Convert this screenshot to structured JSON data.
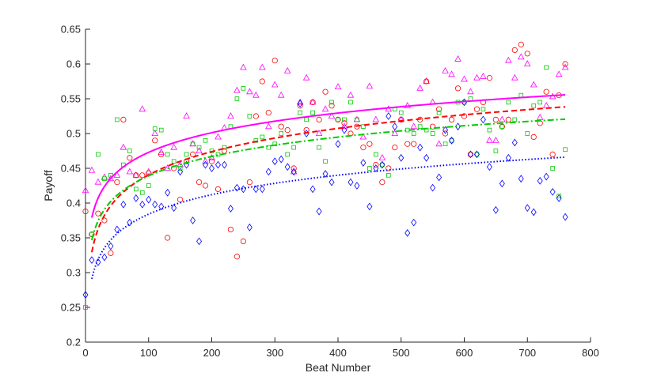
{
  "chart_data": {
    "type": "scatter",
    "xlabel": "Beat Number",
    "ylabel": "Payoff",
    "xlim": [
      0,
      800
    ],
    "ylim": [
      0.2,
      0.65
    ],
    "xticks": [
      0,
      100,
      200,
      300,
      400,
      500,
      600,
      700,
      800
    ],
    "yticks": [
      0.2,
      0.25,
      0.3,
      0.35,
      0.4,
      0.45,
      0.5,
      0.55,
      0.6,
      0.65
    ],
    "grid": false,
    "box": false,
    "fits": [
      {
        "color": "#ff00ff",
        "style": "solid",
        "x_range": [
          10,
          760
        ],
        "a": 0.285,
        "b": 0.0408
      },
      {
        "color": "#ff0000",
        "style": "dashed",
        "x_range": [
          10,
          760
        ],
        "a": 0.218,
        "b": 0.0483
      },
      {
        "color": "#00cc00",
        "style": "dashdot",
        "x_range": [
          10,
          760
        ],
        "a": 0.254,
        "b": 0.0402
      },
      {
        "color": "#0000ff",
        "style": "dotted",
        "x_range": [
          10,
          760
        ],
        "a": 0.198,
        "b": 0.0404
      }
    ],
    "series": [
      {
        "marker": "triangle",
        "color": "#ff00ff",
        "points": [
          [
            0,
            0.418
          ],
          [
            10,
            0.447
          ],
          [
            20,
            0.43
          ],
          [
            30,
            0.437
          ],
          [
            40,
            0.435
          ],
          [
            50,
            0.44
          ],
          [
            60,
            0.48
          ],
          [
            70,
            0.445
          ],
          [
            80,
            0.44
          ],
          [
            90,
            0.535
          ],
          [
            100,
            0.445
          ],
          [
            110,
            0.5
          ],
          [
            120,
            0.473
          ],
          [
            130,
            0.45
          ],
          [
            140,
            0.48
          ],
          [
            150,
            0.455
          ],
          [
            160,
            0.525
          ],
          [
            170,
            0.485
          ],
          [
            180,
            0.475
          ],
          [
            190,
            0.46
          ],
          [
            200,
            0.465
          ],
          [
            210,
            0.495
          ],
          [
            220,
            0.508
          ],
          [
            230,
            0.525
          ],
          [
            240,
            0.562
          ],
          [
            250,
            0.595
          ],
          [
            260,
            0.56
          ],
          [
            270,
            0.555
          ],
          [
            280,
            0.595
          ],
          [
            290,
            0.51
          ],
          [
            300,
            0.57
          ],
          [
            310,
            0.555
          ],
          [
            320,
            0.59
          ],
          [
            330,
            0.445
          ],
          [
            340,
            0.545
          ],
          [
            350,
            0.58
          ],
          [
            360,
            0.545
          ],
          [
            370,
            0.5
          ],
          [
            380,
            0.535
          ],
          [
            390,
            0.525
          ],
          [
            400,
            0.567
          ],
          [
            410,
            0.51
          ],
          [
            420,
            0.555
          ],
          [
            430,
            0.52
          ],
          [
            440,
            0.495
          ],
          [
            450,
            0.568
          ],
          [
            460,
            0.52
          ],
          [
            470,
            0.465
          ],
          [
            480,
            0.535
          ],
          [
            490,
            0.5
          ],
          [
            500,
            0.52
          ],
          [
            510,
            0.54
          ],
          [
            520,
            0.51
          ],
          [
            530,
            0.565
          ],
          [
            540,
            0.575
          ],
          [
            550,
            0.545
          ],
          [
            560,
            0.485
          ],
          [
            570,
            0.59
          ],
          [
            580,
            0.585
          ],
          [
            590,
            0.607
          ],
          [
            600,
            0.578
          ],
          [
            610,
            0.56
          ],
          [
            620,
            0.58
          ],
          [
            630,
            0.582
          ],
          [
            640,
            0.49
          ],
          [
            650,
            0.49
          ],
          [
            660,
            0.52
          ],
          [
            670,
            0.605
          ],
          [
            680,
            0.58
          ],
          [
            690,
            0.61
          ],
          [
            700,
            0.6
          ],
          [
            710,
            0.57
          ],
          [
            720,
            0.523
          ],
          [
            730,
            0.54
          ],
          [
            740,
            0.553
          ],
          [
            750,
            0.585
          ],
          [
            760,
            0.595
          ]
        ]
      },
      {
        "marker": "circle",
        "color": "#ff0000",
        "points": [
          [
            0,
            0.388
          ],
          [
            10,
            0.355
          ],
          [
            20,
            0.385
          ],
          [
            30,
            0.375
          ],
          [
            40,
            0.328
          ],
          [
            50,
            0.43
          ],
          [
            60,
            0.52
          ],
          [
            70,
            0.465
          ],
          [
            80,
            0.44
          ],
          [
            90,
            0.44
          ],
          [
            100,
            0.443
          ],
          [
            110,
            0.49
          ],
          [
            120,
            0.47
          ],
          [
            130,
            0.35
          ],
          [
            140,
            0.45
          ],
          [
            150,
            0.405
          ],
          [
            160,
            0.46
          ],
          [
            170,
            0.47
          ],
          [
            180,
            0.43
          ],
          [
            190,
            0.425
          ],
          [
            200,
            0.46
          ],
          [
            210,
            0.42
          ],
          [
            220,
            0.475
          ],
          [
            230,
            0.362
          ],
          [
            240,
            0.323
          ],
          [
            250,
            0.345
          ],
          [
            260,
            0.43
          ],
          [
            270,
            0.525
          ],
          [
            280,
            0.575
          ],
          [
            290,
            0.53
          ],
          [
            300,
            0.605
          ],
          [
            310,
            0.51
          ],
          [
            320,
            0.505
          ],
          [
            330,
            0.45
          ],
          [
            340,
            0.54
          ],
          [
            350,
            0.505
          ],
          [
            360,
            0.545
          ],
          [
            370,
            0.52
          ],
          [
            380,
            0.56
          ],
          [
            390,
            0.54
          ],
          [
            400,
            0.52
          ],
          [
            410,
            0.515
          ],
          [
            420,
            0.5
          ],
          [
            430,
            0.51
          ],
          [
            440,
            0.48
          ],
          [
            450,
            0.485
          ],
          [
            460,
            0.455
          ],
          [
            470,
            0.43
          ],
          [
            480,
            0.45
          ],
          [
            490,
            0.48
          ],
          [
            500,
            0.52
          ],
          [
            510,
            0.485
          ],
          [
            520,
            0.485
          ],
          [
            530,
            0.52
          ],
          [
            540,
            0.575
          ],
          [
            550,
            0.51
          ],
          [
            560,
            0.535
          ],
          [
            570,
            0.5
          ],
          [
            580,
            0.52
          ],
          [
            590,
            0.565
          ],
          [
            600,
            0.525
          ],
          [
            610,
            0.47
          ],
          [
            620,
            0.535
          ],
          [
            630,
            0.545
          ],
          [
            640,
            0.58
          ],
          [
            650,
            0.52
          ],
          [
            660,
            0.51
          ],
          [
            670,
            0.52
          ],
          [
            680,
            0.62
          ],
          [
            690,
            0.628
          ],
          [
            700,
            0.615
          ],
          [
            710,
            0.495
          ],
          [
            720,
            0.515
          ],
          [
            730,
            0.56
          ],
          [
            740,
            0.47
          ],
          [
            750,
            0.555
          ],
          [
            760,
            0.6
          ]
        ]
      },
      {
        "marker": "square",
        "color": "#00cc00",
        "points": [
          [
            0,
            0.25
          ],
          [
            10,
            0.355
          ],
          [
            20,
            0.47
          ],
          [
            30,
            0.435
          ],
          [
            40,
            0.44
          ],
          [
            50,
            0.52
          ],
          [
            60,
            0.455
          ],
          [
            70,
            0.475
          ],
          [
            80,
            0.42
          ],
          [
            90,
            0.415
          ],
          [
            100,
            0.425
          ],
          [
            110,
            0.507
          ],
          [
            120,
            0.505
          ],
          [
            130,
            0.47
          ],
          [
            140,
            0.46
          ],
          [
            150,
            0.45
          ],
          [
            160,
            0.47
          ],
          [
            170,
            0.485
          ],
          [
            180,
            0.48
          ],
          [
            190,
            0.49
          ],
          [
            200,
            0.475
          ],
          [
            210,
            0.47
          ],
          [
            220,
            0.48
          ],
          [
            230,
            0.51
          ],
          [
            240,
            0.55
          ],
          [
            250,
            0.565
          ],
          [
            260,
            0.525
          ],
          [
            270,
            0.49
          ],
          [
            280,
            0.495
          ],
          [
            290,
            0.48
          ],
          [
            300,
            0.485
          ],
          [
            310,
            0.5
          ],
          [
            320,
            0.47
          ],
          [
            330,
            0.48
          ],
          [
            340,
            0.53
          ],
          [
            350,
            0.52
          ],
          [
            360,
            0.53
          ],
          [
            370,
            0.48
          ],
          [
            380,
            0.46
          ],
          [
            390,
            0.545
          ],
          [
            400,
            0.52
          ],
          [
            410,
            0.52
          ],
          [
            420,
            0.545
          ],
          [
            430,
            0.52
          ],
          [
            440,
            0.51
          ],
          [
            450,
            0.45
          ],
          [
            460,
            0.47
          ],
          [
            470,
            0.455
          ],
          [
            480,
            0.44
          ],
          [
            490,
            0.535
          ],
          [
            500,
            0.53
          ],
          [
            510,
            0.505
          ],
          [
            520,
            0.5
          ],
          [
            530,
            0.51
          ],
          [
            540,
            0.505
          ],
          [
            550,
            0.5
          ],
          [
            560,
            0.53
          ],
          [
            570,
            0.485
          ],
          [
            580,
            0.49
          ],
          [
            590,
            0.545
          ],
          [
            600,
            0.545
          ],
          [
            610,
            0.55
          ],
          [
            620,
            0.47
          ],
          [
            630,
            0.535
          ],
          [
            640,
            0.505
          ],
          [
            650,
            0.475
          ],
          [
            660,
            0.51
          ],
          [
            670,
            0.545
          ],
          [
            680,
            0.52
          ],
          [
            690,
            0.555
          ],
          [
            700,
            0.5
          ],
          [
            710,
            0.54
          ],
          [
            720,
            0.545
          ],
          [
            730,
            0.595
          ],
          [
            740,
            0.45
          ],
          [
            750,
            0.41
          ],
          [
            760,
            0.477
          ]
        ]
      },
      {
        "marker": "diamond",
        "color": "#0000ff",
        "points": [
          [
            0,
            0.268
          ],
          [
            10,
            0.318
          ],
          [
            20,
            0.315
          ],
          [
            30,
            0.322
          ],
          [
            40,
            0.338
          ],
          [
            50,
            0.362
          ],
          [
            60,
            0.398
          ],
          [
            70,
            0.372
          ],
          [
            80,
            0.407
          ],
          [
            90,
            0.398
          ],
          [
            100,
            0.405
          ],
          [
            110,
            0.398
          ],
          [
            120,
            0.395
          ],
          [
            130,
            0.415
          ],
          [
            140,
            0.393
          ],
          [
            150,
            0.445
          ],
          [
            160,
            0.455
          ],
          [
            170,
            0.375
          ],
          [
            180,
            0.345
          ],
          [
            190,
            0.455
          ],
          [
            200,
            0.45
          ],
          [
            210,
            0.455
          ],
          [
            220,
            0.455
          ],
          [
            230,
            0.392
          ],
          [
            240,
            0.422
          ],
          [
            250,
            0.42
          ],
          [
            260,
            0.365
          ],
          [
            270,
            0.42
          ],
          [
            280,
            0.42
          ],
          [
            290,
            0.445
          ],
          [
            300,
            0.46
          ],
          [
            310,
            0.463
          ],
          [
            320,
            0.452
          ],
          [
            330,
            0.445
          ],
          [
            340,
            0.543
          ],
          [
            350,
            0.5
          ],
          [
            360,
            0.42
          ],
          [
            370,
            0.388
          ],
          [
            380,
            0.442
          ],
          [
            390,
            0.43
          ],
          [
            400,
            0.485
          ],
          [
            410,
            0.505
          ],
          [
            420,
            0.43
          ],
          [
            430,
            0.425
          ],
          [
            440,
            0.458
          ],
          [
            450,
            0.395
          ],
          [
            460,
            0.45
          ],
          [
            470,
            0.455
          ],
          [
            480,
            0.525
          ],
          [
            490,
            0.51
          ],
          [
            500,
            0.465
          ],
          [
            510,
            0.357
          ],
          [
            520,
            0.372
          ],
          [
            530,
            0.48
          ],
          [
            540,
            0.465
          ],
          [
            550,
            0.422
          ],
          [
            560,
            0.437
          ],
          [
            570,
            0.505
          ],
          [
            580,
            0.49
          ],
          [
            590,
            0.51
          ],
          [
            600,
            0.545
          ],
          [
            610,
            0.47
          ],
          [
            620,
            0.47
          ],
          [
            630,
            0.52
          ],
          [
            640,
            0.452
          ],
          [
            650,
            0.39
          ],
          [
            660,
            0.428
          ],
          [
            670,
            0.465
          ],
          [
            680,
            0.487
          ],
          [
            690,
            0.435
          ],
          [
            700,
            0.393
          ],
          [
            710,
            0.387
          ],
          [
            720,
            0.432
          ],
          [
            730,
            0.438
          ],
          [
            740,
            0.416
          ],
          [
            750,
            0.407
          ],
          [
            760,
            0.38
          ]
        ]
      }
    ]
  }
}
